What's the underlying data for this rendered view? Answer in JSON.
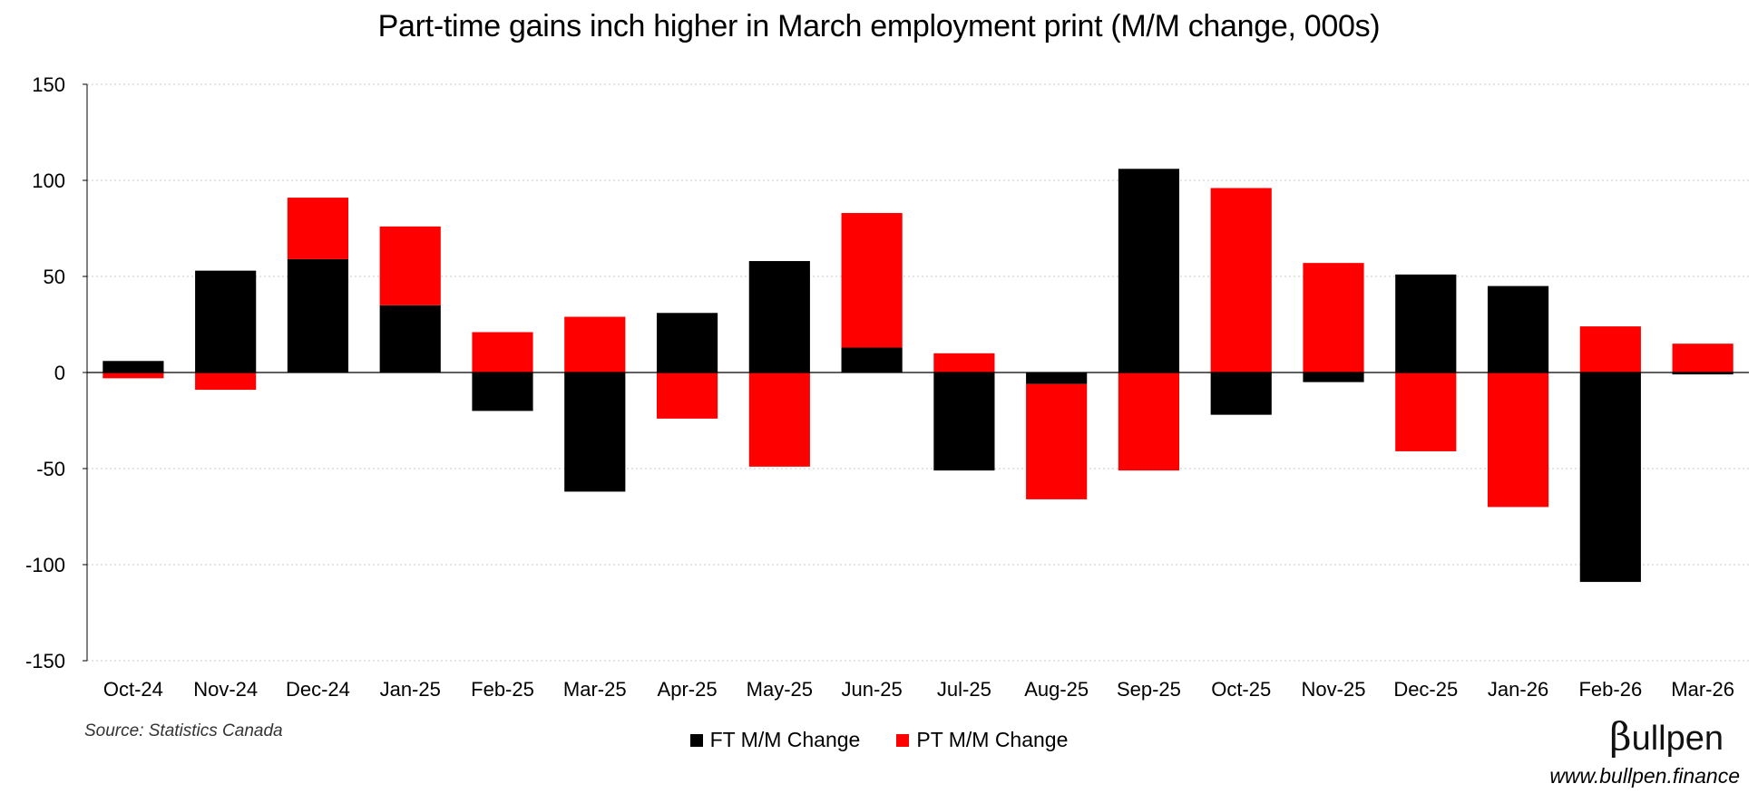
{
  "chart_data": {
    "type": "bar",
    "stacked": true,
    "title": "Part-time gains inch higher in March employment print (M/M change, 000s)",
    "xlabel": "",
    "ylabel": "",
    "ylim": [
      -150,
      150
    ],
    "yticks": [
      150,
      100,
      50,
      0,
      -50,
      -100,
      -150
    ],
    "grid": true,
    "categories": [
      "Oct-24",
      "Nov-24",
      "Dec-24",
      "Jan-25",
      "Feb-25",
      "Mar-25",
      "Apr-25",
      "May-25",
      "Jun-25",
      "Jul-25",
      "Aug-25",
      "Sep-25",
      "Oct-25",
      "Nov-25",
      "Dec-25",
      "Jan-26",
      "Feb-26",
      "Mar-26"
    ],
    "series": [
      {
        "name": "FT M/M Change",
        "color": "#000000",
        "values": [
          6,
          53,
          59,
          35,
          -20,
          -62,
          31,
          58,
          13,
          -51,
          -6,
          106,
          -22,
          -5,
          51,
          45,
          -109,
          -1
        ]
      },
      {
        "name": "PT M/M Change",
        "color": "#ff0000",
        "values": [
          -3,
          -9,
          32,
          41,
          21,
          29,
          -24,
          -49,
          70,
          10,
          -60,
          -51,
          96,
          57,
          -41,
          -70,
          24,
          15
        ]
      }
    ],
    "legend_position": "bottom-center"
  },
  "footer": {
    "source": "Source: Statistics Canada",
    "brand_mark": "β",
    "brand_name": "ullpen",
    "url": "www.bullpen.finance"
  }
}
